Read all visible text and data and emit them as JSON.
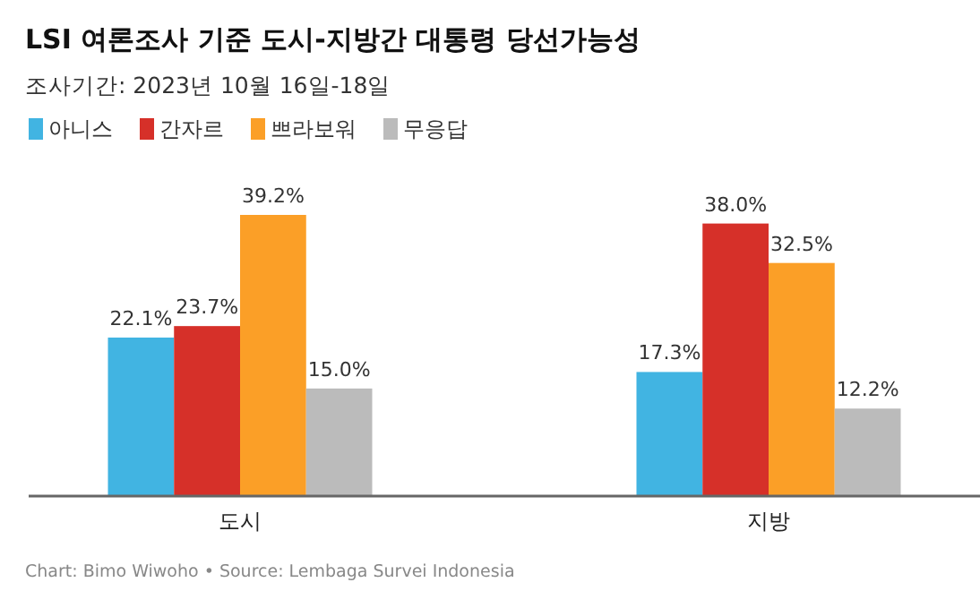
{
  "chart_data": {
    "type": "bar",
    "title": "LSI 여론조사 기준 도시-지방간 대통령 당선가능성",
    "subtitle": "조사기간: 2023년 10월 16일-18일",
    "categories": [
      "도시",
      "지방"
    ],
    "series": [
      {
        "name": "아니스",
        "color": "#41b4e2",
        "values": [
          22.1,
          17.3
        ],
        "value_labels": [
          "22.1%",
          "17.3%"
        ]
      },
      {
        "name": "간자르",
        "color": "#d63029",
        "values": [
          23.7,
          38.0
        ],
        "value_labels": [
          "23.7%",
          "38.0%"
        ]
      },
      {
        "name": "쁘라보워",
        "color": "#fb9f27",
        "values": [
          39.2,
          32.5
        ],
        "value_labels": [
          "39.2%",
          "32.5%"
        ]
      },
      {
        "name": "무응답",
        "color": "#bbbbbb",
        "values": [
          15.0,
          12.2
        ],
        "value_labels": [
          "15.0%",
          "12.2%"
        ]
      }
    ],
    "tick_labels": "x",
    "legend": "top left",
    "annotations": [
      "Chart: Bimo Wiwoho • Source: Lembaga Survei Indonesia"
    ]
  }
}
